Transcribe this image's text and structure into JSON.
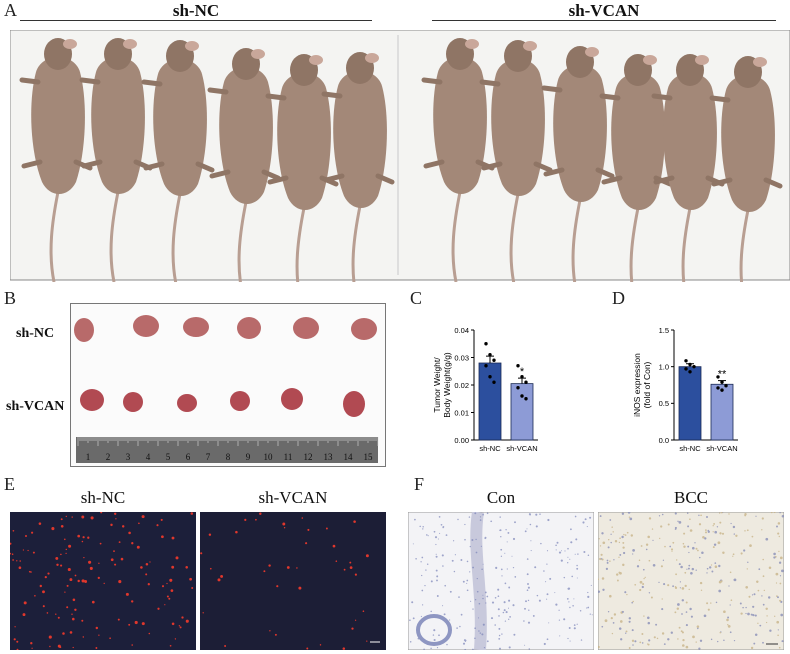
{
  "panels": {
    "A": {
      "letter": "A",
      "groups": [
        "sh-NC",
        "sh-VCAN"
      ]
    },
    "B": {
      "letter": "B",
      "rows": [
        "sh-NC",
        "sh-VCAN"
      ],
      "ruler_numbers": [
        "1",
        "2",
        "3",
        "4",
        "5",
        "6",
        "7",
        "8",
        "9",
        "10",
        "11",
        "12",
        "13",
        "14",
        "15"
      ]
    },
    "C": {
      "letter": "C"
    },
    "D": {
      "letter": "D"
    },
    "E": {
      "letter": "E",
      "titles": [
        "sh-NC",
        "sh-VCAN"
      ]
    },
    "F": {
      "letter": "F",
      "titles": [
        "Con",
        "BCC"
      ]
    }
  },
  "chart_data": [
    {
      "id": "C",
      "type": "bar",
      "categories": [
        "sh-NC",
        "sh-VCAN"
      ],
      "values": [
        0.028,
        0.0205
      ],
      "errors": [
        0.0025,
        0.002
      ],
      "points": [
        [
          0.035,
          0.031,
          0.029,
          0.027,
          0.023,
          0.021
        ],
        [
          0.027,
          0.023,
          0.021,
          0.019,
          0.016,
          0.015
        ]
      ],
      "significance": [
        "",
        "*"
      ],
      "ylabel_lines": [
        "Tumor Weight/",
        "Body Weight(g/g)"
      ],
      "ylim": [
        0,
        0.04
      ],
      "yticks": [
        "0.00",
        "0.01",
        "0.02",
        "0.03",
        "0.04"
      ],
      "colors": [
        "#2c4f9e",
        "#8d9bd6"
      ]
    },
    {
      "id": "D",
      "type": "bar",
      "categories": [
        "sh-NC",
        "sh-VCAN"
      ],
      "values": [
        1.0,
        0.76
      ],
      "errors": [
        0.04,
        0.05
      ],
      "points": [
        [
          1.08,
          1.03,
          1.0,
          0.97,
          0.93
        ],
        [
          0.86,
          0.79,
          0.74,
          0.71,
          0.68
        ]
      ],
      "significance": [
        "",
        "**"
      ],
      "ylabel_lines": [
        "iNOS expression",
        "(fold of Con)"
      ],
      "ylim": [
        0,
        1.5
      ],
      "yticks": [
        "0.0",
        "0.5",
        "1.0",
        "1.5"
      ],
      "colors": [
        "#2c4f9e",
        "#8d9bd6"
      ]
    }
  ]
}
